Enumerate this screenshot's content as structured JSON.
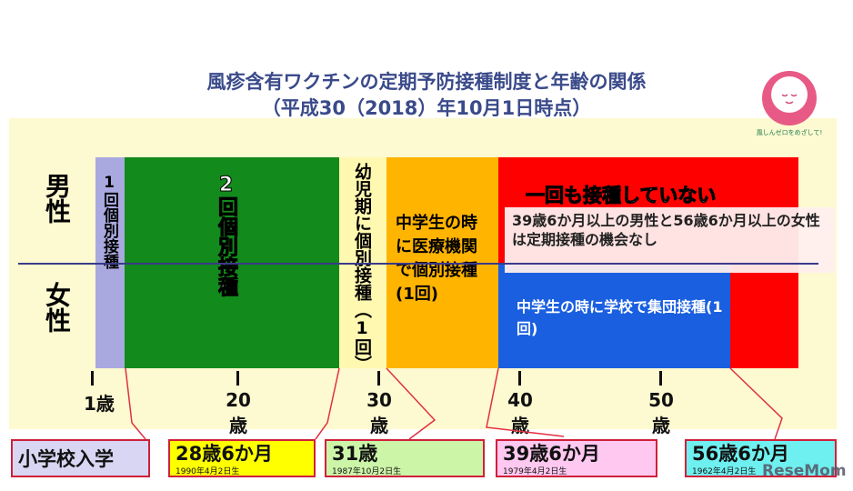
{
  "title": {
    "line1": "風疹含有ワクチンの定期予防接種制度と年齢の関係",
    "line2": "（平成30（2018）年10月1日時点）"
  },
  "logo": {
    "text": "風しんゼロをめざして!"
  },
  "gender": {
    "male": "男性",
    "female": "女性"
  },
  "segments": {
    "one_dose": "1回個別接種",
    "two_dose": "2回個別接種",
    "infant": "幼児期に個別接種（1回）",
    "junior_clinic": "中学生の時に医療機関で個別接種(1回)",
    "never": "一回も接種していない",
    "note": "39歳6か月以上の男性と56歳6か月以上の女性は定期接種の機会なし",
    "junior_school": "中学生の時に学校で集団接種(1回)"
  },
  "colors": {
    "one_dose": "#a9a9e0",
    "two_dose": "#138a1c",
    "infant": "#fff8b0",
    "junior_clinic": "#ffb400",
    "never": "#ff0000",
    "junior_school": "#1a5fe0"
  },
  "axis": {
    "ticks": [
      {
        "num": "1",
        "unit": "歳"
      },
      {
        "num": "20",
        "unit": "歳"
      },
      {
        "num": "30",
        "unit": "歳"
      },
      {
        "num": "40",
        "unit": "歳"
      },
      {
        "num": "50",
        "unit": "歳"
      }
    ]
  },
  "milestones": [
    {
      "label": "小学校入学",
      "birth": ""
    },
    {
      "label": "28歳6か月",
      "birth": "1990年4月2日生"
    },
    {
      "label": "31歳",
      "birth": "1987年10月2日生"
    },
    {
      "label": "39歳6か月",
      "birth": "1979年4月2日生"
    },
    {
      "label": "56歳6か月",
      "birth": "1962年4月2日生"
    }
  ],
  "watermark": "ReseMom"
}
